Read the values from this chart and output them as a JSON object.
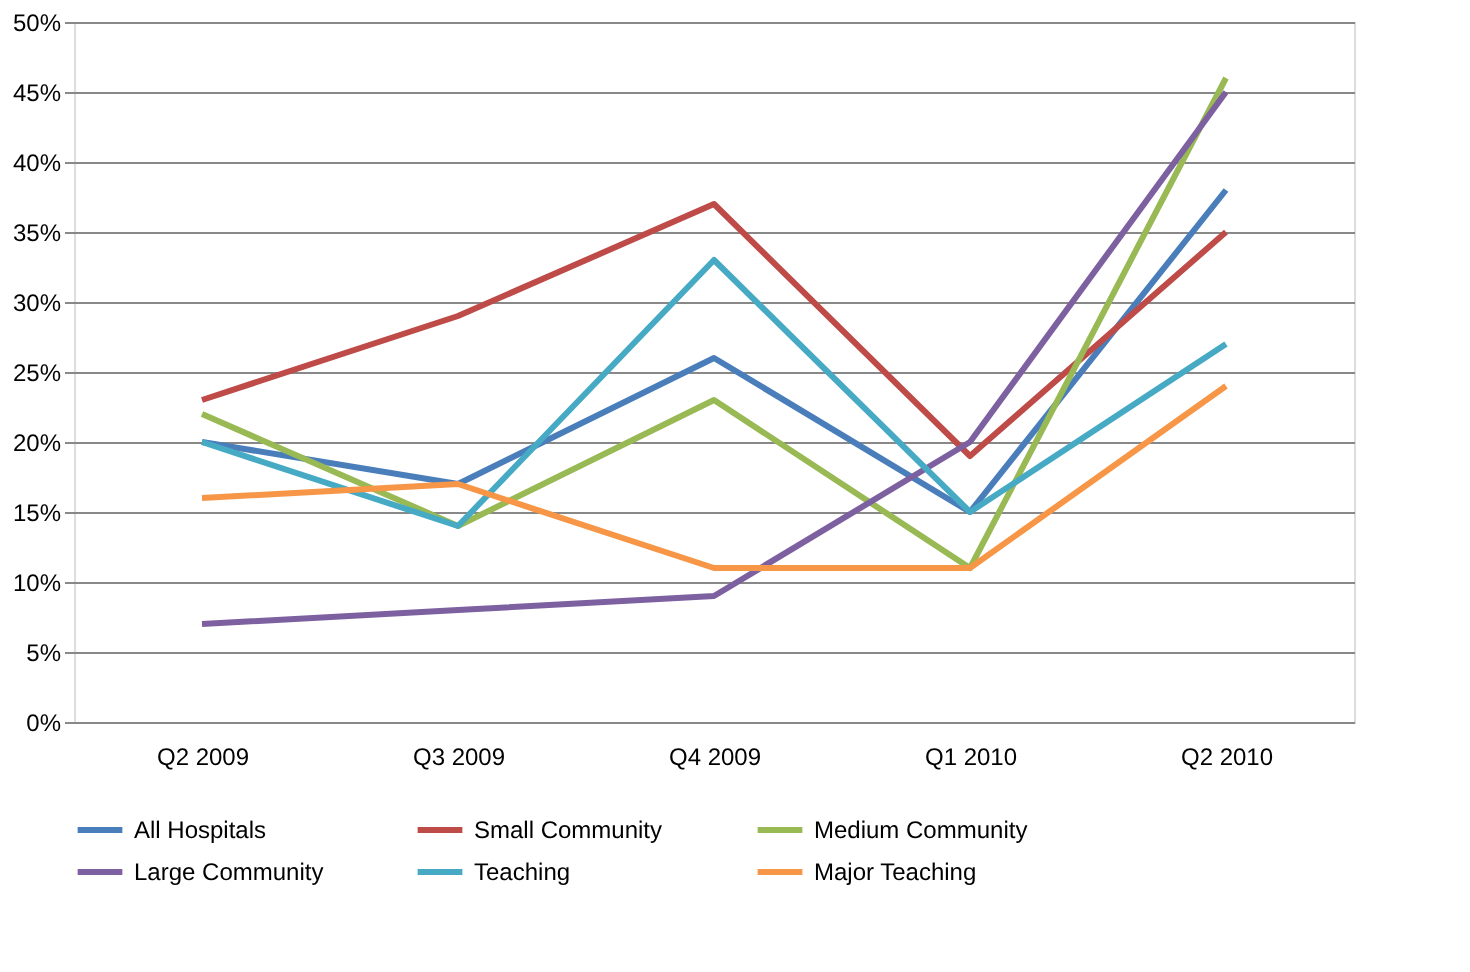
{
  "chart_data": {
    "type": "line",
    "categories": [
      "Q2 2009",
      "Q3 2009",
      "Q4 2009",
      "Q1 2010",
      "Q2 2010"
    ],
    "series": [
      {
        "name": "All Hospitals",
        "color": "#4a7ebb",
        "values": [
          20,
          17,
          26,
          15,
          38
        ]
      },
      {
        "name": "Small Community",
        "color": "#be4b48",
        "values": [
          23,
          29,
          37,
          19,
          35
        ]
      },
      {
        "name": "Medium Community",
        "color": "#98b954",
        "values": [
          22,
          14,
          23,
          11,
          46
        ]
      },
      {
        "name": "Large Community",
        "color": "#7d60a0",
        "values": [
          7,
          8,
          9,
          20,
          45
        ]
      },
      {
        "name": "Teaching",
        "color": "#46aac5",
        "values": [
          20,
          14,
          33,
          15,
          27
        ]
      },
      {
        "name": "Major Teaching",
        "color": "#f79646",
        "values": [
          16,
          17,
          11,
          11,
          24
        ]
      }
    ],
    "ylim": [
      0,
      50
    ],
    "yticks": [
      {
        "value": 0,
        "label": "0%"
      },
      {
        "value": 5,
        "label": "5%"
      },
      {
        "value": 10,
        "label": "10%"
      },
      {
        "value": 15,
        "label": "15%"
      },
      {
        "value": 20,
        "label": "20%"
      },
      {
        "value": 25,
        "label": "25%"
      },
      {
        "value": 30,
        "label": "30%"
      },
      {
        "value": 35,
        "label": "35%"
      },
      {
        "value": 40,
        "label": "40%"
      },
      {
        "value": 45,
        "label": "45%"
      },
      {
        "value": 50,
        "label": "50%"
      }
    ],
    "grid": "y",
    "legend": "bottom",
    "marker": "none",
    "line_style": "solid"
  }
}
